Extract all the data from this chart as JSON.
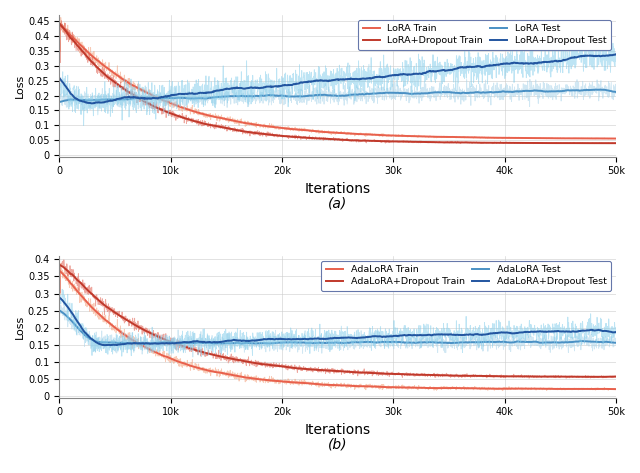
{
  "fig_width": 6.4,
  "fig_height": 4.73,
  "dpi": 100,
  "background_color": "#ffffff",
  "n_points": 2000,
  "x_max": 50000,
  "subplot_a": {
    "title": "(a)",
    "xlabel": "Iterations",
    "ylabel": "Loss",
    "ylim": [
      -0.005,
      0.47
    ],
    "yticks": [
      0,
      0.05,
      0.1,
      0.15,
      0.2,
      0.25,
      0.3,
      0.35,
      0.4,
      0.45
    ],
    "ytick_labels": [
      "0",
      "0.05",
      "0.1",
      "0.15",
      "0.2",
      "0.25",
      "0.3",
      "0.35",
      "0.4",
      "0.45"
    ],
    "xticks": [
      0,
      10000,
      20000,
      30000,
      40000,
      50000
    ],
    "xtick_labels": [
      "0",
      "10k",
      "20k",
      "30k",
      "40k",
      "50k"
    ]
  },
  "subplot_b": {
    "title": "(b)",
    "xlabel": "Iterations",
    "ylabel": "Loss",
    "ylim": [
      -0.005,
      0.41
    ],
    "yticks": [
      0,
      0.05,
      0.1,
      0.15,
      0.2,
      0.25,
      0.3,
      0.35,
      0.4
    ],
    "ytick_labels": [
      "0",
      "0.05",
      "0.1",
      "0.15",
      "0.2",
      "0.25",
      "0.3",
      "0.35",
      "0.4"
    ],
    "xticks": [
      0,
      10000,
      20000,
      30000,
      40000,
      50000
    ],
    "xtick_labels": [
      "0",
      "10k",
      "20k",
      "30k",
      "40k",
      "50k"
    ]
  },
  "colors": {
    "lora_train_noisy": "#f4a07a",
    "lora_train_smooth": "#e8604c",
    "lora_dropout_train_noisy": "#e06050",
    "lora_dropout_train_smooth": "#c0392b",
    "lora_test_noisy": "#aad4ea",
    "lora_test_smooth": "#4a90c4",
    "lora_dropout_test_noisy": "#87ceeb",
    "lora_dropout_test_smooth": "#2255a0"
  },
  "legend_a": {
    "row1": [
      "LoRA Train",
      "LoRA+Dropout Train"
    ],
    "row2": [
      "LoRA Test",
      "LoRA+Dropout Test"
    ]
  },
  "legend_b": {
    "row1": [
      "AdaLoRA Train",
      "AdaLoRA+Dropout Train"
    ],
    "row2": [
      "AdaLoRA Test",
      "AdaLoRA+Dropout Test"
    ]
  }
}
